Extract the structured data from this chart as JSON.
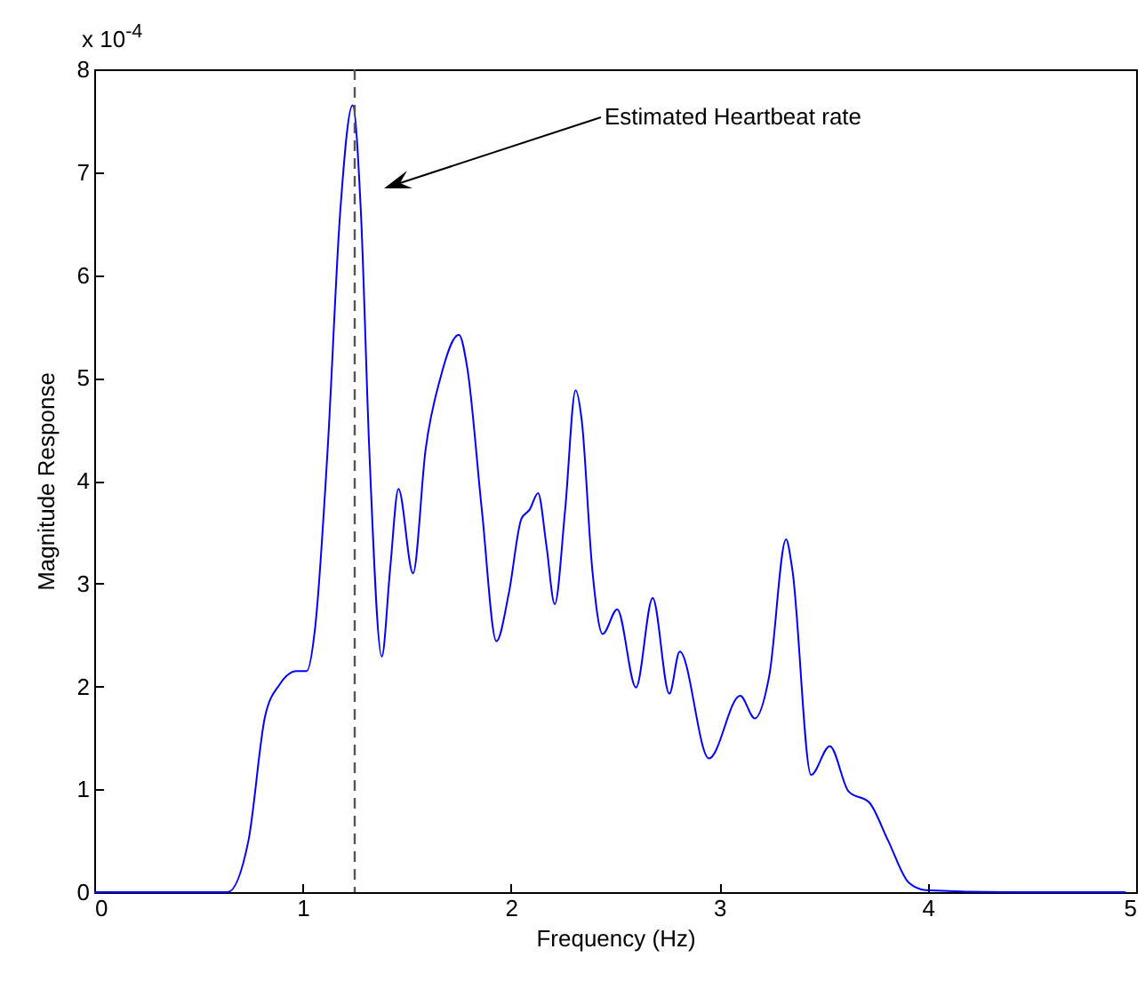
{
  "chart_data": {
    "type": "line",
    "x": [
      0,
      0.64,
      0.74,
      0.82,
      0.89,
      0.97,
      1.02,
      1.06,
      1.12,
      1.18,
      1.24,
      1.28,
      1.32,
      1.38,
      1.42,
      1.46,
      1.53,
      1.59,
      1.66,
      1.75,
      1.79,
      1.86,
      1.93,
      1.99,
      2.05,
      2.09,
      2.13,
      2.17,
      2.21,
      2.26,
      2.31,
      2.34,
      2.39,
      2.44,
      2.51,
      2.6,
      2.68,
      2.76,
      2.81,
      2.95,
      3.1,
      3.17,
      3.24,
      3.32,
      3.35,
      3.44,
      3.53,
      3.62,
      3.72,
      3.81,
      3.91,
      3.99,
      4.38,
      4.95
    ],
    "series": [
      {
        "color": "#0000ff",
        "values": [
          0,
          0,
          0.5,
          1.71,
          2.02,
          2.15,
          2.15,
          2.57,
          4.3,
          6.6,
          7.65,
          6.6,
          4.3,
          2.29,
          3.14,
          3.92,
          3.1,
          4.3,
          4.99,
          5.42,
          5.1,
          3.72,
          2.44,
          2.91,
          3.63,
          3.72,
          3.88,
          3.37,
          2.8,
          3.72,
          4.88,
          4.58,
          3.14,
          2.51,
          2.75,
          1.99,
          2.86,
          1.93,
          2.34,
          1.3,
          1.91,
          1.69,
          2.11,
          3.43,
          3.14,
          1.14,
          1.42,
          0.98,
          0.87,
          0.5,
          0.09,
          0.02,
          0,
          0
        ]
      }
    ],
    "xlabel": "Frequency (Hz)",
    "ylabel": "Magnitude Response",
    "xlim": [
      0,
      5
    ],
    "xticks": [
      0,
      1,
      2,
      3,
      4,
      5
    ],
    "ylim": [
      0,
      8
    ],
    "yticks": [
      0,
      1,
      2,
      3,
      4,
      5,
      6,
      7,
      8
    ],
    "ref_lines": [
      {
        "axis": "x",
        "value": 1.25,
        "color": "#555555",
        "line_style": "dashed"
      }
    ],
    "annotations": [
      "x 10$^{-4}$",
      "Estimated Heartbeat rate"
    ],
    "grid": false,
    "marker": "none",
    "line_style": "solid"
  }
}
